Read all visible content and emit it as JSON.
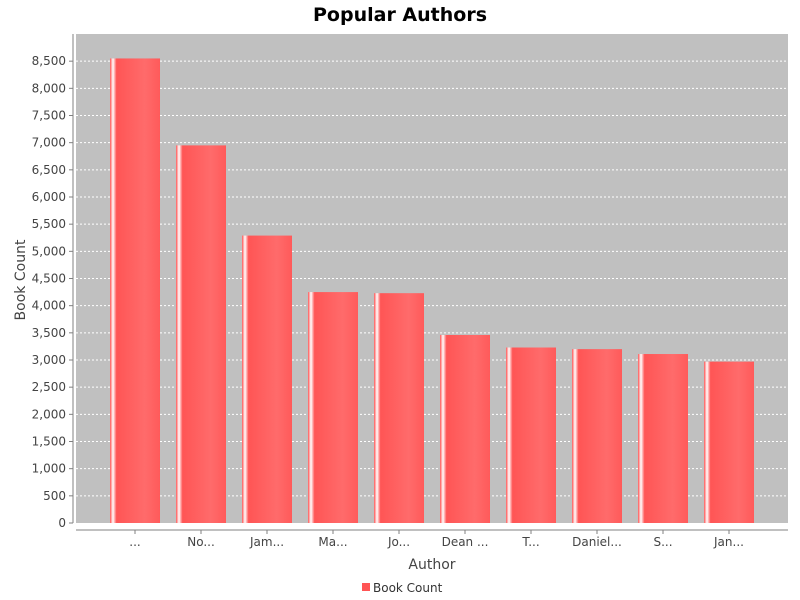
{
  "chart_data": {
    "type": "bar",
    "title": "Popular Authors",
    "xlabel": "Author",
    "ylabel": "Book Count",
    "categories": [
      "...",
      "No...",
      "Jam...",
      "Ma...",
      "Jo...",
      "Dean ...",
      "T...",
      "Daniel...",
      "S...",
      "Jan..."
    ],
    "series": [
      {
        "name": "Book Count",
        "color": "#ff5555",
        "values": [
          8550,
          6950,
          5290,
          4250,
          4230,
          3460,
          3230,
          3200,
          3110,
          2970
        ]
      }
    ],
    "ylim": [
      0,
      9000
    ],
    "yticks": [
      0,
      500,
      1000,
      1500,
      2000,
      2500,
      3000,
      3500,
      4000,
      4500,
      5000,
      5500,
      6000,
      6500,
      7000,
      7500,
      8000,
      8500
    ],
    "ytick_labels": [
      "0",
      "500",
      "1,000",
      "1,500",
      "2,000",
      "2,500",
      "3,000",
      "3,500",
      "4,000",
      "4,500",
      "5,000",
      "5,500",
      "6,000",
      "6,500",
      "7,000",
      "7,500",
      "8,000",
      "8,500"
    ],
    "grid": true,
    "legend_position": "bottom",
    "plot_background": "#c0c0c0"
  }
}
